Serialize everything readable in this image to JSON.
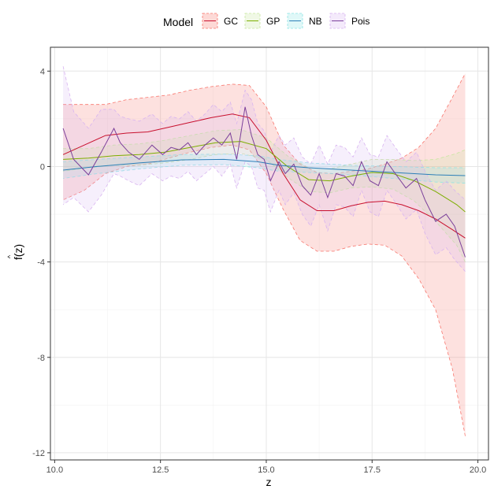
{
  "chart_data": {
    "type": "line",
    "title": "",
    "xlabel": "z",
    "ylabel": "f(z)",
    "ylabel_hat": "^",
    "xlim": [
      9.9,
      20.25
    ],
    "ylim": [
      -12.3,
      5.0
    ],
    "x_ticks": [
      10.0,
      12.5,
      15.0,
      17.5,
      20.0
    ],
    "x_tick_labels": [
      "10.0",
      "12.5",
      "15.0",
      "17.5",
      "20.0"
    ],
    "y_ticks": [
      4,
      0,
      -4,
      -8,
      -12
    ],
    "y_tick_labels": [
      "4",
      "0",
      "-4",
      "-8",
      "-12"
    ],
    "grid": true,
    "legend": {
      "title": "Model",
      "position": "top"
    },
    "series": [
      {
        "name": "GC",
        "line_color": "#c8102e",
        "fill_color": "#f8766d",
        "x": [
          10.2,
          10.7,
          11.2,
          11.7,
          12.2,
          12.7,
          13.2,
          13.7,
          14.2,
          14.6,
          15.0,
          15.4,
          15.8,
          16.2,
          16.6,
          17.0,
          17.4,
          17.8,
          18.2,
          18.6,
          19.0,
          19.4,
          19.7
        ],
        "y": [
          0.5,
          0.9,
          1.3,
          1.4,
          1.45,
          1.65,
          1.85,
          2.05,
          2.2,
          2.05,
          1.1,
          -0.3,
          -1.4,
          -1.85,
          -1.85,
          -1.65,
          -1.5,
          -1.45,
          -1.6,
          -1.85,
          -2.2,
          -2.65,
          -3.0
        ],
        "upper": [
          2.6,
          2.6,
          2.6,
          2.8,
          2.9,
          3.0,
          3.2,
          3.35,
          3.45,
          3.4,
          2.5,
          0.9,
          0.1,
          -0.25,
          -0.3,
          -0.2,
          -0.1,
          0.1,
          0.35,
          0.8,
          1.6,
          2.9,
          3.9
        ],
        "lower": [
          -1.4,
          -1.0,
          -0.3,
          0.0,
          0.1,
          0.35,
          0.6,
          0.8,
          0.9,
          0.7,
          -0.3,
          -1.8,
          -3.1,
          -3.55,
          -3.55,
          -3.35,
          -3.25,
          -3.3,
          -3.75,
          -4.7,
          -6.0,
          -8.5,
          -11.3
        ]
      },
      {
        "name": "GP",
        "line_color": "#7cae00",
        "fill_color": "#c8e6a0",
        "x": [
          10.2,
          10.8,
          11.4,
          12.0,
          12.6,
          13.2,
          13.8,
          14.4,
          15.0,
          15.5,
          16.0,
          16.5,
          17.0,
          17.5,
          18.0,
          18.5,
          19.0,
          19.5,
          19.7
        ],
        "y": [
          0.3,
          0.35,
          0.45,
          0.5,
          0.6,
          0.8,
          1.0,
          1.05,
          0.75,
          0.0,
          -0.55,
          -0.6,
          -0.4,
          -0.25,
          -0.3,
          -0.6,
          -1.05,
          -1.6,
          -1.9
        ],
        "upper": [
          0.75,
          0.75,
          0.9,
          0.95,
          1.1,
          1.3,
          1.5,
          1.55,
          1.2,
          0.45,
          -0.05,
          -0.1,
          0.1,
          0.3,
          0.3,
          0.25,
          0.3,
          0.55,
          0.7
        ],
        "lower": [
          -0.2,
          -0.05,
          0.05,
          0.05,
          0.15,
          0.3,
          0.5,
          0.55,
          0.3,
          -0.45,
          -1.05,
          -1.1,
          -0.9,
          -0.85,
          -0.95,
          -1.45,
          -2.3,
          -3.3,
          -4.0
        ]
      },
      {
        "name": "NB",
        "line_color": "#2c7fb8",
        "fill_color": "#8ee5e5",
        "x": [
          10.2,
          11.0,
          12.0,
          13.0,
          14.0,
          14.8,
          15.3,
          16.0,
          17.0,
          18.0,
          19.0,
          19.7
        ],
        "y": [
          -0.15,
          0.0,
          0.15,
          0.28,
          0.3,
          0.2,
          0.05,
          -0.05,
          -0.15,
          -0.25,
          -0.35,
          -0.38
        ],
        "upper": [
          0.2,
          0.3,
          0.4,
          0.5,
          0.52,
          0.45,
          0.3,
          0.15,
          0.05,
          0.0,
          -0.05,
          -0.05
        ],
        "lower": [
          -0.5,
          -0.3,
          -0.1,
          0.05,
          0.08,
          -0.05,
          -0.2,
          -0.25,
          -0.35,
          -0.5,
          -0.65,
          -0.7
        ]
      },
      {
        "name": "Pois",
        "line_color": "#7b3f9a",
        "fill_color": "#d8b4f0",
        "x": [
          10.2,
          10.45,
          10.8,
          11.1,
          11.4,
          11.55,
          11.75,
          12.0,
          12.3,
          12.55,
          12.75,
          12.95,
          13.15,
          13.35,
          13.55,
          13.75,
          13.95,
          14.15,
          14.3,
          14.5,
          14.65,
          14.8,
          14.95,
          15.1,
          15.3,
          15.45,
          15.65,
          15.85,
          16.05,
          16.25,
          16.45,
          16.65,
          16.85,
          17.05,
          17.25,
          17.45,
          17.65,
          17.85,
          18.05,
          18.3,
          18.55,
          18.75,
          19.0,
          19.25,
          19.45,
          19.7
        ],
        "y": [
          1.6,
          0.3,
          -0.35,
          0.6,
          1.6,
          1.0,
          0.6,
          0.3,
          0.9,
          0.5,
          0.8,
          0.7,
          1.0,
          0.5,
          0.9,
          1.2,
          0.9,
          1.4,
          0.3,
          2.5,
          1.3,
          0.5,
          0.3,
          -0.6,
          0.2,
          -0.3,
          0.1,
          -0.8,
          -1.2,
          -0.3,
          -1.3,
          -0.3,
          -0.4,
          -0.8,
          0.2,
          -0.6,
          -0.8,
          0.2,
          -0.3,
          -0.9,
          -0.5,
          -1.4,
          -2.3,
          -2.0,
          -2.5,
          -3.8
        ],
        "upper": [
          4.2,
          2.3,
          1.6,
          2.4,
          2.4,
          2.1,
          2.0,
          1.9,
          2.2,
          1.8,
          2.1,
          2.0,
          2.3,
          1.9,
          2.2,
          2.6,
          2.3,
          2.7,
          1.8,
          3.2,
          2.8,
          1.8,
          1.5,
          0.6,
          1.3,
          0.9,
          1.2,
          0.4,
          0.1,
          0.9,
          0.1,
          0.9,
          0.8,
          0.4,
          1.2,
          0.5,
          0.4,
          1.3,
          0.8,
          0.2,
          0.6,
          -0.2,
          -1.0,
          -0.6,
          -1.0,
          -1.4
        ],
        "lower": [
          -1.6,
          -1.3,
          -1.9,
          -1.2,
          -0.3,
          -0.4,
          -0.6,
          -0.8,
          -0.3,
          -0.6,
          -0.4,
          -0.5,
          -0.2,
          -0.6,
          -0.3,
          0.0,
          -0.4,
          0.1,
          -0.9,
          0.2,
          0.0,
          -0.9,
          -1.0,
          -1.9,
          -1.0,
          -1.6,
          -1.1,
          -2.0,
          -2.5,
          -1.6,
          -2.7,
          -1.6,
          -1.7,
          -2.1,
          -1.0,
          -1.9,
          -2.1,
          -1.0,
          -1.5,
          -2.2,
          -1.8,
          -2.8,
          -3.7,
          -3.4,
          -3.9,
          -4.4
        ]
      }
    ]
  }
}
